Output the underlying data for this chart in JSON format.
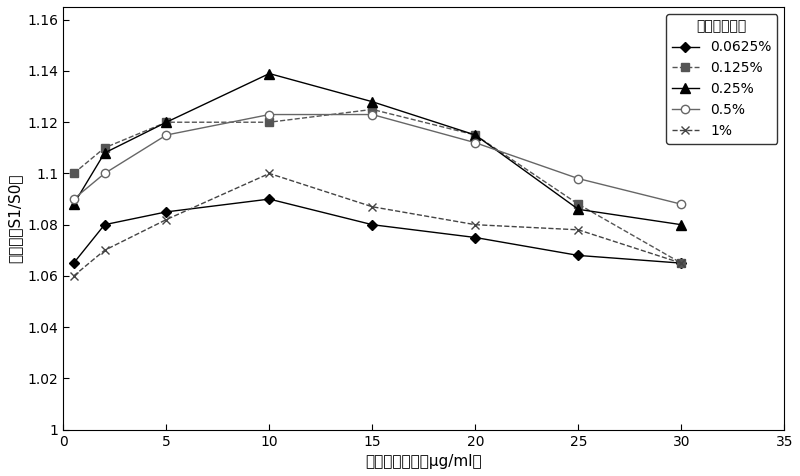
{
  "x": [
    0.5,
    2,
    5,
    10,
    15,
    20,
    25,
    30
  ],
  "series": [
    {
      "label": "0.0625%",
      "y": [
        1.065,
        1.08,
        1.085,
        1.09,
        1.08,
        1.075,
        1.068,
        1.065
      ],
      "color": "#000000",
      "marker": "D",
      "linestyle": "-",
      "markersize": 5,
      "fillstyle": "full",
      "linewidth": 1.0
    },
    {
      "label": "0.125%",
      "y": [
        1.1,
        1.11,
        1.12,
        1.12,
        1.125,
        1.115,
        1.088,
        1.065
      ],
      "color": "#555555",
      "marker": "s",
      "linestyle": "--",
      "markersize": 6,
      "fillstyle": "full",
      "linewidth": 1.0
    },
    {
      "label": "0.25%",
      "y": [
        1.088,
        1.108,
        1.12,
        1.139,
        1.128,
        1.115,
        1.086,
        1.08
      ],
      "color": "#000000",
      "marker": "^",
      "linestyle": "-",
      "markersize": 7,
      "fillstyle": "full",
      "linewidth": 1.0
    },
    {
      "label": "0.5%",
      "y": [
        1.09,
        1.1,
        1.115,
        1.123,
        1.123,
        1.112,
        1.098,
        1.088
      ],
      "color": "#666666",
      "marker": "o",
      "linestyle": "-",
      "markersize": 6,
      "fillstyle": "none",
      "linewidth": 1.0
    },
    {
      "label": "1%",
      "y": [
        1.06,
        1.07,
        1.082,
        1.1,
        1.087,
        1.08,
        1.078,
        1.065
      ],
      "color": "#444444",
      "marker": "x",
      "linestyle": "--",
      "markersize": 6,
      "fillstyle": "full",
      "linewidth": 1.0
    }
  ],
  "xlabel": "酶标抗体浓度（μg/ml）",
  "ylabel": "信噪比（S1/S0）",
  "legend_title": "磁性微粒浓度",
  "xlim": [
    0,
    35
  ],
  "ylim": [
    1.0,
    1.165
  ],
  "yticks": [
    1.0,
    1.02,
    1.04,
    1.06,
    1.08,
    1.1,
    1.12,
    1.14,
    1.16
  ],
  "ytick_labels": [
    "1",
    "1.02",
    "1.04",
    "1.06",
    "1.08",
    "1.1",
    "1.12",
    "1.14",
    "1.16"
  ],
  "xticks": [
    0,
    5,
    10,
    15,
    20,
    25,
    30,
    35
  ],
  "background_color": "#ffffff"
}
